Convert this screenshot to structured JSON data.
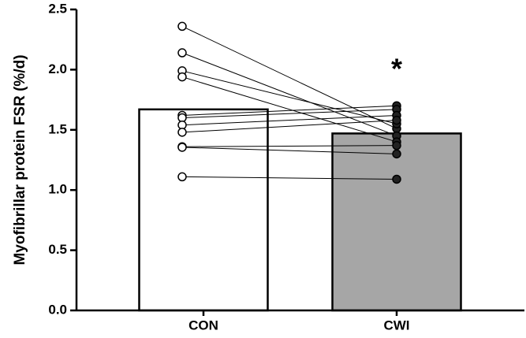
{
  "chart_data": {
    "type": "bar",
    "y_label": "Myofibrillar protein FSR (%/d)",
    "categories": [
      "CON",
      "CWI"
    ],
    "values": [
      1.67,
      1.47
    ],
    "colors": [
      "#ffffff",
      "#a6a6a6"
    ],
    "points": [
      [
        2.36,
        1.51
      ],
      [
        2.14,
        1.45
      ],
      [
        1.99,
        1.55
      ],
      [
        1.94,
        1.4
      ],
      [
        1.62,
        1.7
      ],
      [
        1.6,
        1.67
      ],
      [
        1.54,
        1.62
      ],
      [
        1.48,
        1.58
      ],
      [
        1.36,
        1.37
      ],
      [
        1.355,
        1.3
      ],
      [
        1.11,
        1.09
      ]
    ],
    "annotation": "*",
    "ylim": [
      0,
      2.5
    ],
    "yticks": [
      {
        "value": 0,
        "label": "0.0"
      },
      {
        "value": 0.5,
        "label": "0.5"
      },
      {
        "value": 1,
        "label": "1.0"
      },
      {
        "value": 1.5,
        "label": "1.5"
      },
      {
        "value": 2,
        "label": "2.0"
      },
      {
        "value": 2.5,
        "label": "2.5"
      }
    ]
  }
}
